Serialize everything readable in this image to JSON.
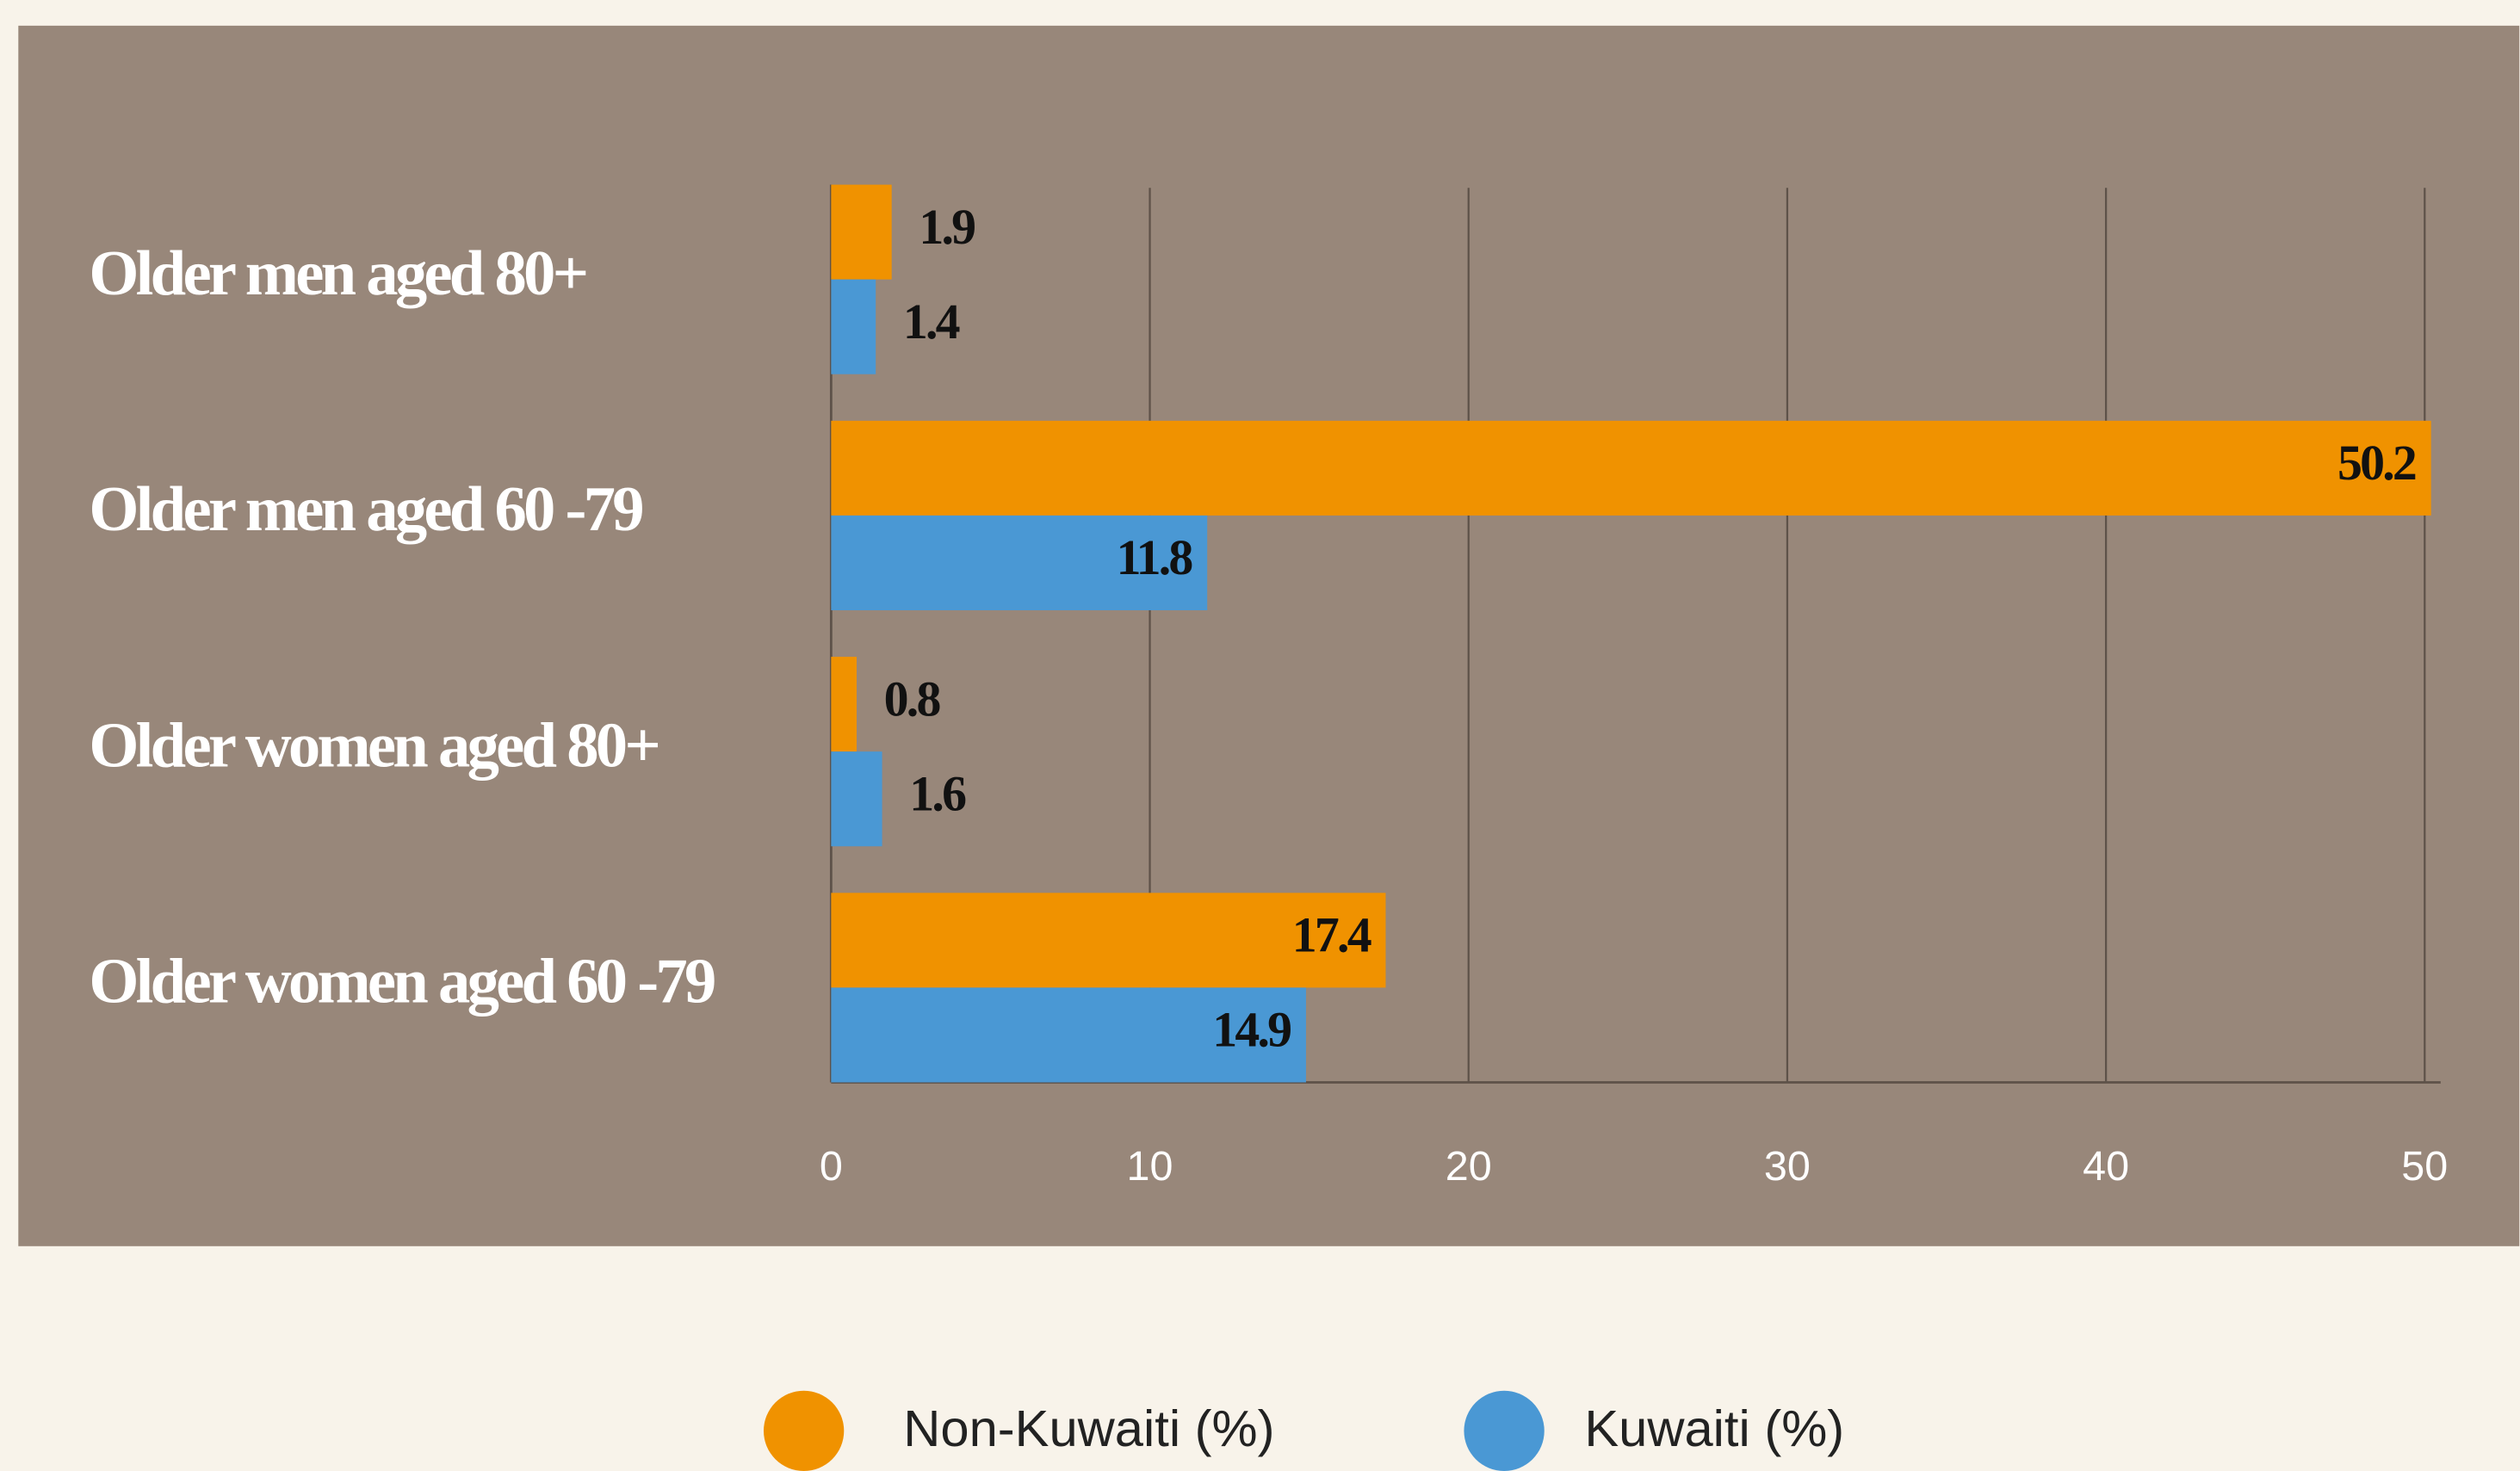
{
  "chart_data": {
    "type": "hbar",
    "categories": [
      "Older men aged 80+",
      "Older men aged 60 -79",
      "Older women aged 80+",
      "Older women aged 60 -79"
    ],
    "series": [
      {
        "name": "Non-Kuwaiti (%)",
        "color": "#f09200",
        "values": [
          1.9,
          50.2,
          0.8,
          17.4
        ]
      },
      {
        "name": "Kuwaiti (%)",
        "color": "#4a98d4",
        "values": [
          1.4,
          11.8,
          1.6,
          14.9
        ]
      }
    ],
    "xlim": [
      0,
      50.5
    ],
    "xticks": [
      0,
      10,
      20,
      30,
      40,
      50
    ],
    "grid": true,
    "legend": "bottom"
  }
}
